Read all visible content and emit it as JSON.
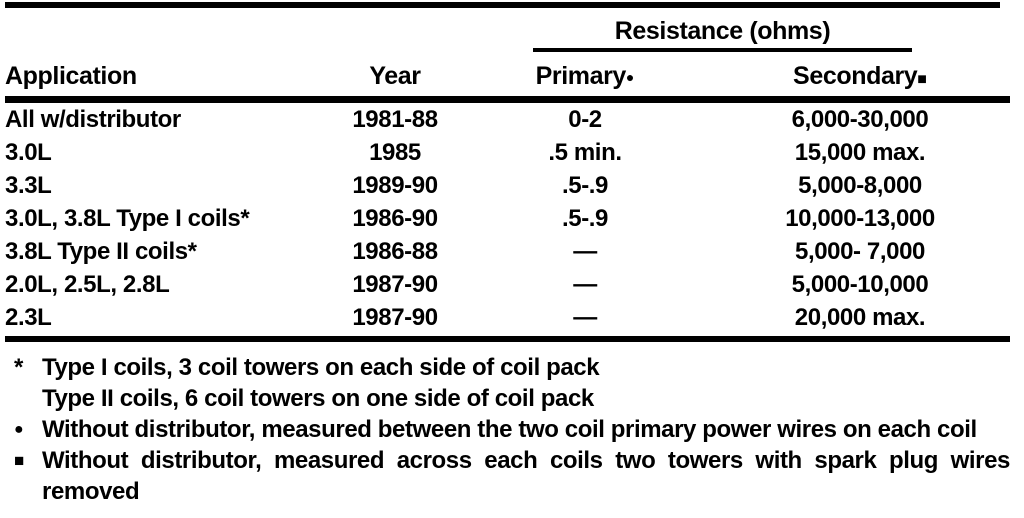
{
  "colors": {
    "ink": "#000000",
    "paper": "#ffffff"
  },
  "table": {
    "spanner_header": "Resistance (ohms)",
    "columns": {
      "application": "Application",
      "year": "Year",
      "primary": "Primary",
      "secondary": "Secondary"
    },
    "primary_marker": "●",
    "secondary_marker": "■",
    "rows": [
      {
        "application": "All w/distributor",
        "year": "1981-88",
        "primary": "0-2",
        "secondary": "6,000-30,000"
      },
      {
        "application": "3.0L",
        "year": "1985",
        "primary": ".5 min.",
        "secondary": "15,000 max."
      },
      {
        "application": "3.3L",
        "year": "1989-90",
        "primary": ".5-.9",
        "secondary": "5,000-8,000"
      },
      {
        "application": "3.0L, 3.8L Type I coils*",
        "year": "1986-90",
        "primary": ".5-.9",
        "secondary": "10,000-13,000"
      },
      {
        "application": "3.8L Type II coils*",
        "year": "1986-88",
        "primary": "—",
        "secondary": "5,000- 7,000"
      },
      {
        "application": "2.0L, 2.5L, 2.8L",
        "year": "1987-90",
        "primary": "—",
        "secondary": "5,000-10,000"
      },
      {
        "application": "2.3L",
        "year": "1987-90",
        "primary": "—",
        "secondary": "20,000 max."
      }
    ],
    "footnotes": {
      "star_marker": "*",
      "star_line1": "Type I coils, 3 coil towers on each side of coil pack",
      "star_line2": "Type II coils, 6 coil towers on one side of coil pack",
      "dot_marker": "●",
      "dot_text": "Without distributor, measured between the two coil primary power wires on each coil",
      "square_marker": "■",
      "square_text": "Without distributor, measured across each coils two towers with spark plug wires removed"
    }
  }
}
